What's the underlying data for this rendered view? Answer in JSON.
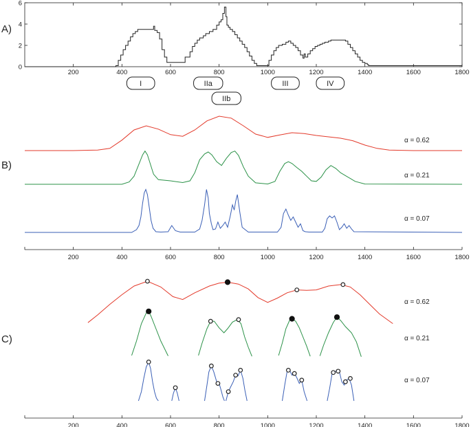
{
  "chart_data": [
    {
      "panel": "A)",
      "type": "line",
      "subtype": "step",
      "xlim": [
        0,
        1800
      ],
      "ylim": [
        0,
        6
      ],
      "xticks": [
        200,
        400,
        600,
        800,
        1000,
        1200,
        1400,
        1600,
        1800
      ],
      "yticks": [
        0,
        2,
        4,
        6
      ],
      "color": "#222222",
      "x": [
        0,
        375,
        385,
        395,
        405,
        415,
        425,
        435,
        445,
        455,
        465,
        520,
        530,
        535,
        545,
        555,
        565,
        575,
        585,
        640,
        660,
        680,
        690,
        700,
        710,
        720,
        735,
        745,
        760,
        775,
        790,
        800,
        808,
        815,
        822,
        828,
        832,
        838,
        845,
        855,
        865,
        875,
        885,
        895,
        905,
        915,
        925,
        935,
        945,
        955,
        985,
        1005,
        1015,
        1025,
        1035,
        1045,
        1060,
        1075,
        1085,
        1095,
        1105,
        1115,
        1125,
        1135,
        1145,
        1150,
        1155,
        1165,
        1175,
        1185,
        1195,
        1205,
        1215,
        1225,
        1235,
        1250,
        1260,
        1300,
        1320,
        1330,
        1340,
        1350,
        1360,
        1370,
        1380,
        1390,
        1400,
        1410,
        1415,
        1800
      ],
      "y": [
        0,
        0.1,
        0.6,
        1.1,
        1.6,
        2.0,
        2.4,
        2.8,
        3.1,
        3.3,
        3.5,
        3.5,
        3.8,
        3.4,
        3.2,
        2.6,
        1.6,
        0.9,
        0.4,
        0.4,
        0.9,
        1.4,
        1.9,
        2.2,
        2.5,
        2.7,
        2.9,
        3.1,
        3.3,
        3.5,
        3.9,
        4.2,
        4.4,
        5.0,
        5.6,
        4.7,
        3.9,
        3.7,
        3.5,
        3.3,
        3.0,
        2.7,
        2.4,
        2.1,
        1.8,
        1.4,
        1.0,
        0.6,
        0.3,
        0.1,
        0.1,
        0.6,
        1.1,
        1.5,
        1.8,
        2.0,
        2.1,
        2.3,
        2.4,
        2.2,
        2.0,
        1.8,
        1.5,
        1.1,
        0.8,
        1.2,
        0.9,
        1.2,
        1.5,
        1.7,
        1.9,
        2.0,
        2.1,
        2.2,
        2.3,
        2.4,
        2.5,
        2.5,
        2.4,
        2.1,
        1.8,
        1.5,
        1.2,
        0.9,
        0.6,
        0.4,
        0.3,
        0.2,
        0.1,
        0
      ]
    },
    {
      "panel": "A-regions",
      "type": "table",
      "regions": [
        {
          "label": "I",
          "start": 420,
          "end": 535
        },
        {
          "label": "IIa",
          "start": 695,
          "end": 815
        },
        {
          "label": "IIb",
          "start": 770,
          "end": 890
        },
        {
          "label": "III",
          "start": 1015,
          "end": 1130
        },
        {
          "label": "IV",
          "start": 1200,
          "end": 1315
        }
      ]
    },
    {
      "panel": "B)",
      "type": "line",
      "xlim": [
        0,
        1800
      ],
      "xticks": [
        200,
        400,
        600,
        800,
        1000,
        1200,
        1400,
        1600,
        1800
      ],
      "series": [
        {
          "label": "α = 0.62",
          "color": "#e3392a",
          "x": [
            0,
            200,
            300,
            350,
            400,
            450,
            500,
            550,
            600,
            650,
            700,
            750,
            800,
            850,
            900,
            950,
            1000,
            1050,
            1100,
            1150,
            1200,
            1250,
            1300,
            1350,
            1400,
            1450,
            1500,
            1600,
            1800
          ],
          "y": [
            0,
            0,
            0.02,
            0.08,
            0.38,
            0.75,
            0.9,
            0.78,
            0.58,
            0.52,
            0.75,
            1.08,
            1.25,
            1.18,
            0.9,
            0.6,
            0.48,
            0.57,
            0.65,
            0.62,
            0.55,
            0.5,
            0.45,
            0.36,
            0.2,
            0.08,
            0.02,
            0,
            0
          ]
        },
        {
          "label": "α = 0.21",
          "color": "#2a9147",
          "x": [
            0,
            400,
            430,
            450,
            470,
            485,
            495,
            505,
            515,
            530,
            550,
            600,
            650,
            680,
            700,
            720,
            740,
            755,
            770,
            790,
            810,
            830,
            850,
            865,
            880,
            900,
            920,
            950,
            1000,
            1030,
            1050,
            1070,
            1085,
            1100,
            1120,
            1140,
            1160,
            1180,
            1200,
            1220,
            1240,
            1260,
            1280,
            1300,
            1320,
            1340,
            1360,
            1400,
            1800
          ],
          "y": [
            0,
            0,
            0.08,
            0.28,
            0.7,
            1.02,
            1.15,
            1.02,
            0.75,
            0.35,
            0.16,
            0.12,
            0.06,
            0.12,
            0.4,
            0.85,
            1.05,
            1.12,
            1.02,
            0.78,
            0.65,
            0.9,
            1.1,
            1.15,
            1.0,
            0.6,
            0.28,
            0.05,
            0.01,
            0.1,
            0.45,
            0.72,
            0.78,
            0.72,
            0.58,
            0.45,
            0.28,
            0.12,
            0.1,
            0.25,
            0.5,
            0.65,
            0.55,
            0.4,
            0.3,
            0.2,
            0.1,
            0.01,
            0
          ]
        },
        {
          "label": "α = 0.07",
          "color": "#3a5fb6",
          "x": [
            0,
            440,
            460,
            470,
            478,
            485,
            492,
            498,
            505,
            512,
            520,
            528,
            540,
            560,
            590,
            605,
            620,
            640,
            700,
            720,
            730,
            740,
            748,
            755,
            760,
            768,
            775,
            785,
            795,
            805,
            815,
            825,
            835,
            845,
            855,
            862,
            868,
            875,
            885,
            895,
            920,
            1040,
            1055,
            1065,
            1075,
            1085,
            1095,
            1105,
            1115,
            1125,
            1135,
            1145,
            1155,
            1170,
            1225,
            1235,
            1245,
            1255,
            1265,
            1275,
            1285,
            1295,
            1305,
            1315,
            1325,
            1335,
            1345,
            1355,
            1800
          ],
          "y": [
            0,
            0,
            0.08,
            0.2,
            0.45,
            0.85,
            1.15,
            1.25,
            1.1,
            0.75,
            0.35,
            0.12,
            0.02,
            0.01,
            0.02,
            0.2,
            0.05,
            0.01,
            0.01,
            0.1,
            0.35,
            0.8,
            1.25,
            1.0,
            0.55,
            0.25,
            0.08,
            0.1,
            0.3,
            0.12,
            0.2,
            0.3,
            0.15,
            0.45,
            0.8,
            0.65,
            0.9,
            1.1,
            0.6,
            0.15,
            0.01,
            0.01,
            0.15,
            0.55,
            0.68,
            0.5,
            0.35,
            0.45,
            0.3,
            0.15,
            0.25,
            0.05,
            0.02,
            0.01,
            0.01,
            0.12,
            0.4,
            0.48,
            0.42,
            0.48,
            0.3,
            0.08,
            0.15,
            0.25,
            0.12,
            0.2,
            0.1,
            0.02,
            0
          ]
        }
      ]
    },
    {
      "panel": "C)",
      "type": "line",
      "xlim": [
        0,
        1800
      ],
      "xticks": [
        200,
        400,
        600,
        800,
        1000,
        1200,
        1400,
        1600,
        1800
      ],
      "series": [
        {
          "label": "α = 0.62",
          "color": "#e3392a",
          "segments": [
            {
              "x": [
                260,
                300,
                350,
                400,
                450,
                505,
                560,
                610,
                650,
                700,
                760,
                800,
                835,
                880,
                920,
                960,
                1000,
                1040,
                1080,
                1120,
                1160,
                1200,
                1250,
                1300,
                1340,
                1380,
                1420,
                1460,
                1515
              ],
              "y": [
                0.04,
                0.2,
                0.42,
                0.62,
                0.8,
                0.9,
                0.78,
                0.58,
                0.52,
                0.66,
                0.8,
                0.86,
                0.88,
                0.84,
                0.74,
                0.56,
                0.46,
                0.55,
                0.66,
                0.72,
                0.71,
                0.72,
                0.8,
                0.83,
                0.78,
                0.62,
                0.42,
                0.22,
                0.02
              ]
            }
          ],
          "maxima": [
            {
              "x": 505,
              "y": 0.9,
              "filled": false
            },
            {
              "x": 835,
              "y": 0.88,
              "filled": true
            },
            {
              "x": 1120,
              "y": 0.72,
              "filled": false
            },
            {
              "x": 1310,
              "y": 0.83,
              "filled": false
            }
          ]
        },
        {
          "label": "α = 0.21",
          "color": "#2a9147",
          "segments": [
            {
              "x": [
                440,
                460,
                480,
                500,
                510,
                520,
                540,
                560,
                590
              ],
              "y": [
                0.05,
                0.4,
                0.82,
                1.08,
                1.12,
                1.0,
                0.7,
                0.4,
                0.04
              ]
            },
            {
              "x": [
                715,
                730,
                750,
                765,
                780,
                800,
                820,
                835,
                855,
                875,
                890,
                905,
                920,
                935
              ],
              "y": [
                0.05,
                0.35,
                0.7,
                0.88,
                0.88,
                0.72,
                0.6,
                0.7,
                0.86,
                0.92,
                0.82,
                0.5,
                0.25,
                0.03
              ]
            },
            {
              "x": [
                1045,
                1060,
                1075,
                1090,
                1100,
                1115,
                1130,
                1145,
                1160,
                1175
              ],
              "y": [
                0.05,
                0.35,
                0.7,
                0.9,
                0.94,
                0.88,
                0.72,
                0.5,
                0.28,
                0.03
              ]
            },
            {
              "x": [
                1215,
                1230,
                1250,
                1270,
                1285,
                1300,
                1320,
                1345,
                1365,
                1385
              ],
              "y": [
                0.04,
                0.3,
                0.6,
                0.85,
                0.98,
                0.9,
                0.75,
                0.6,
                0.38,
                0.02
              ]
            }
          ],
          "maxima": [
            {
              "x": 510,
              "y": 1.12,
              "filled": true
            },
            {
              "x": 765,
              "y": 0.88,
              "filled": false
            },
            {
              "x": 880,
              "y": 0.92,
              "filled": false
            },
            {
              "x": 1100,
              "y": 0.94,
              "filled": true
            },
            {
              "x": 1285,
              "y": 0.98,
              "filled": true
            }
          ]
        },
        {
          "label": "α = 0.07",
          "color": "#3a5fb6",
          "segments": [
            {
              "x": [
                468,
                480,
                490,
                500,
                510,
                518,
                526,
                534,
                542,
                550
              ],
              "y": [
                0.02,
                0.3,
                0.7,
                1.05,
                1.2,
                1.0,
                0.6,
                0.3,
                0.1,
                0.02
              ]
            },
            {
              "x": [
                605,
                612,
                620,
                628,
                635
              ],
              "y": [
                0.02,
                0.25,
                0.42,
                0.25,
                0.02
              ]
            },
            {
              "x": [
                740,
                750,
                758,
                768,
                778,
                790,
                800,
                808,
                815,
                822
              ],
              "y": [
                0.02,
                0.5,
                0.9,
                1.08,
                0.9,
                0.6,
                0.55,
                0.35,
                0.15,
                0.02
              ]
            },
            {
              "x": [
                828,
                838,
                848,
                858,
                868,
                878,
                888,
                898,
                906,
                915
              ],
              "y": [
                0.02,
                0.3,
                0.45,
                0.6,
                0.8,
                0.78,
                0.95,
                0.7,
                0.35,
                0.02
              ]
            },
            {
              "x": [
                1060,
                1070,
                1080,
                1090,
                1100,
                1110,
                1120,
                1130,
                1140,
                1150,
                1162
              ],
              "y": [
                0.02,
                0.5,
                0.92,
                0.95,
                0.8,
                0.85,
                0.72,
                0.55,
                0.65,
                0.3,
                0.02
              ]
            },
            {
              "x": [
                1245,
                1255,
                1265,
                1275,
                1285,
                1295,
                1305,
                1315,
                1325,
                1335,
                1345,
                1355
              ],
              "y": [
                0.02,
                0.4,
                0.85,
                0.9,
                0.92,
                0.9,
                0.6,
                0.5,
                0.65,
                0.7,
                0.5,
                0.02
              ]
            }
          ],
          "maxima": [
            {
              "x": 510,
              "y": 1.2,
              "filled": false
            },
            {
              "x": 620,
              "y": 0.42,
              "filled": false
            },
            {
              "x": 768,
              "y": 1.08,
              "filled": false
            },
            {
              "x": 795,
              "y": 0.55,
              "filled": false
            },
            {
              "x": 838,
              "y": 0.3,
              "filled": false
            },
            {
              "x": 868,
              "y": 0.8,
              "filled": false
            },
            {
              "x": 888,
              "y": 0.95,
              "filled": false
            },
            {
              "x": 1085,
              "y": 0.95,
              "filled": false
            },
            {
              "x": 1110,
              "y": 0.85,
              "filled": false
            },
            {
              "x": 1140,
              "y": 0.65,
              "filled": false
            },
            {
              "x": 1270,
              "y": 0.88,
              "filled": false
            },
            {
              "x": 1290,
              "y": 0.92,
              "filled": false
            },
            {
              "x": 1320,
              "y": 0.6,
              "filled": false
            },
            {
              "x": 1340,
              "y": 0.7,
              "filled": false
            }
          ]
        }
      ]
    }
  ]
}
